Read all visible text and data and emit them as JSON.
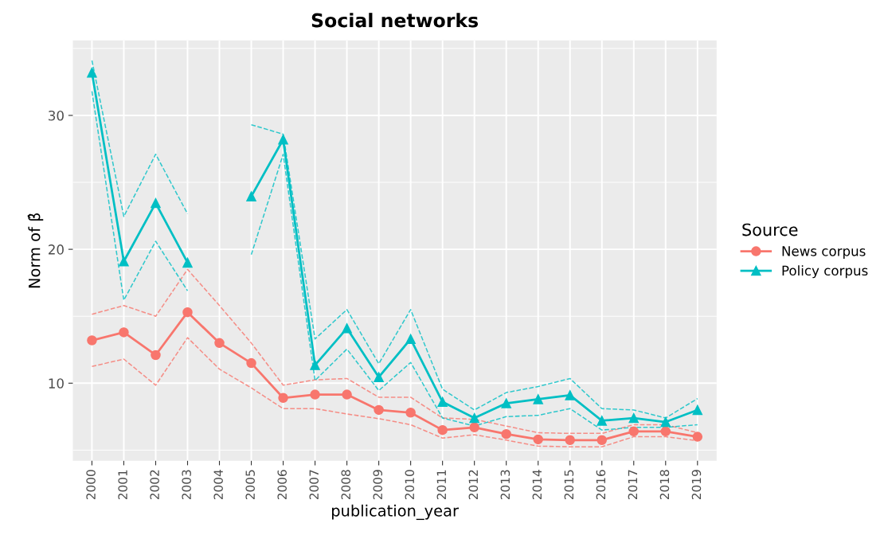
{
  "chart_data": {
    "type": "line",
    "title": "Social networks",
    "xlabel": "publication_year",
    "ylabel": "Norm of β̂",
    "legend_title": "Source",
    "categories": [
      "2000",
      "2001",
      "2002",
      "2003",
      "2004",
      "2005",
      "2006",
      "2007",
      "2008",
      "2009",
      "2010",
      "2011",
      "2012",
      "2013",
      "2014",
      "2015",
      "2016",
      "2017",
      "2018",
      "2019"
    ],
    "series": [
      {
        "name": "News corpus",
        "color": "#f8766d",
        "marker": "circle",
        "line_style": "solid",
        "values": [
          13.2,
          13.8,
          12.1,
          15.3,
          13.0,
          11.5,
          8.9,
          9.15,
          9.15,
          8.0,
          7.8,
          6.5,
          6.7,
          6.2,
          5.8,
          5.75,
          5.75,
          6.4,
          6.4,
          6.0
        ]
      },
      {
        "name": "Policy corpus",
        "color": "#00bfc4",
        "marker": "triangle",
        "line_style": "solid",
        "values": [
          33.2,
          19.1,
          23.45,
          19.0,
          null,
          23.95,
          28.2,
          11.35,
          14.1,
          10.45,
          13.3,
          8.6,
          7.4,
          8.5,
          8.8,
          9.1,
          7.2,
          7.4,
          7.1,
          8.0
        ]
      },
      {
        "color": "#f8766d",
        "marker": "none",
        "line_style": "dashed",
        "values": [
          11.25,
          11.8,
          9.85,
          13.4,
          11.05,
          9.65,
          8.1,
          8.1,
          7.7,
          7.35,
          6.9,
          5.9,
          6.15,
          5.75,
          5.3,
          5.25,
          5.25,
          6.0,
          6.0,
          5.7
        ]
      },
      {
        "color": "#f8766d",
        "marker": "none",
        "line_style": "dashed",
        "values": [
          15.15,
          15.8,
          15.0,
          18.5,
          15.8,
          13.0,
          9.85,
          10.25,
          10.35,
          8.95,
          8.95,
          7.4,
          7.3,
          6.8,
          6.3,
          6.25,
          6.25,
          6.9,
          6.9,
          6.3
        ]
      },
      {
        "color": "#00bfc4",
        "marker": "none",
        "line_style": "dashed",
        "values": [
          31.8,
          16.2,
          20.6,
          16.9,
          null,
          19.6,
          27.1,
          10.2,
          12.55,
          9.45,
          11.55,
          7.4,
          6.8,
          7.5,
          7.6,
          8.1,
          6.5,
          6.7,
          6.7,
          6.9
        ]
      },
      {
        "color": "#00bfc4",
        "marker": "none",
        "line_style": "dashed",
        "values": [
          34.1,
          22.45,
          27.1,
          22.65,
          null,
          29.3,
          28.6,
          13.3,
          15.5,
          11.45,
          15.5,
          9.55,
          8.0,
          9.3,
          9.75,
          10.35,
          8.1,
          8.0,
          7.4,
          8.85
        ]
      }
    ],
    "ylim": [
      4.2,
      35.6
    ],
    "yticks": [
      10,
      20,
      30
    ],
    "grid": true,
    "legend": "right"
  }
}
